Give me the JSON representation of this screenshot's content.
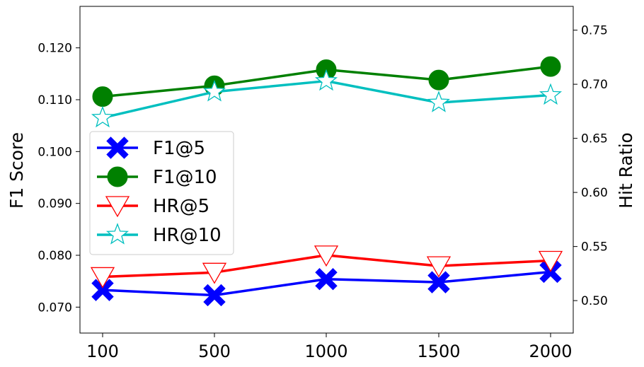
{
  "chart_data": {
    "type": "line",
    "x": [
      100,
      500,
      1000,
      1500,
      2000
    ],
    "x_tick_labels": [
      "100",
      "500",
      "1000",
      "1500",
      "2000"
    ],
    "left_axis": {
      "label": "F1 Score",
      "ylim": [
        0.065,
        0.128
      ],
      "ticks": [
        0.07,
        0.08,
        0.09,
        0.1,
        0.11,
        0.12
      ],
      "tick_labels": [
        "0.070",
        "0.080",
        "0.090",
        "0.100",
        "0.110",
        "0.120"
      ]
    },
    "right_axis": {
      "label": "Hit Ratio",
      "ylim": [
        0.47,
        0.772
      ],
      "ticks": [
        0.5,
        0.55,
        0.6,
        0.65,
        0.7,
        0.75
      ],
      "tick_labels": [
        "0.50",
        "0.55",
        "0.60",
        "0.65",
        "0.70",
        "0.75"
      ]
    },
    "series": [
      {
        "name": "F1@5",
        "axis": "left",
        "values": [
          0.0733,
          0.0723,
          0.0754,
          0.0748,
          0.0768
        ],
        "color": "#0000ff",
        "marker": "x-filled"
      },
      {
        "name": "F1@10",
        "axis": "left",
        "values": [
          0.1106,
          0.1127,
          0.1158,
          0.1138,
          0.1164
        ],
        "color": "#008000",
        "marker": "circle"
      },
      {
        "name": "HR@5",
        "axis": "right",
        "values": [
          0.522,
          0.526,
          0.542,
          0.532,
          0.537
        ],
        "color": "#ff0000",
        "marker": "triangle-down-open"
      },
      {
        "name": "HR@10",
        "axis": "right",
        "values": [
          0.669,
          0.693,
          0.703,
          0.683,
          0.69
        ],
        "color": "#00bfbf",
        "marker": "star-open"
      }
    ],
    "grid": false,
    "legend_position": "center-left"
  }
}
